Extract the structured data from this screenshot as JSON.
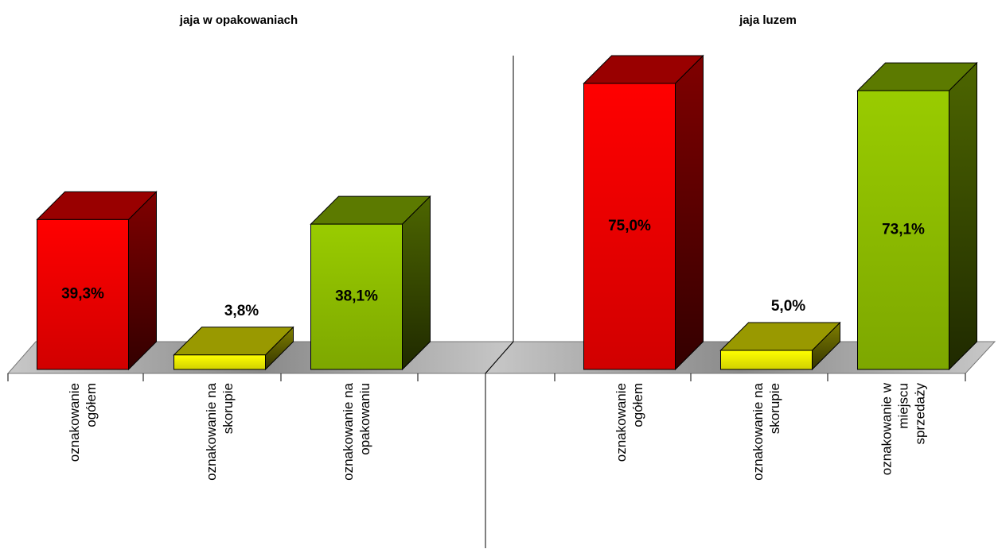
{
  "chart_data": [
    {
      "type": "bar3d",
      "title": "jaja w opakowaniach",
      "categories": [
        "oznakowanie ogółem",
        "oznakowanie na skorupie",
        "oznakowanie na opakowaniu"
      ],
      "values": [
        39.3,
        3.8,
        38.1
      ],
      "value_labels": [
        "39,3%",
        "3,8%",
        "38,1%"
      ],
      "colors": [
        "#ff0000",
        "#ffff00",
        "#99cc00"
      ],
      "ylim": [
        0,
        100
      ]
    },
    {
      "type": "bar3d",
      "title": "jaja luzem",
      "categories": [
        "oznakowanie ogółem",
        "oznakowanie na skorupie",
        "oznakowanie w miejscu sprzedaży"
      ],
      "values": [
        75.0,
        5.0,
        73.1
      ],
      "value_labels": [
        "75,0%",
        "5,0%",
        "73,1%"
      ],
      "colors": [
        "#ff0000",
        "#ffff00",
        "#99cc00"
      ],
      "ylim": [
        0,
        100
      ]
    }
  ]
}
